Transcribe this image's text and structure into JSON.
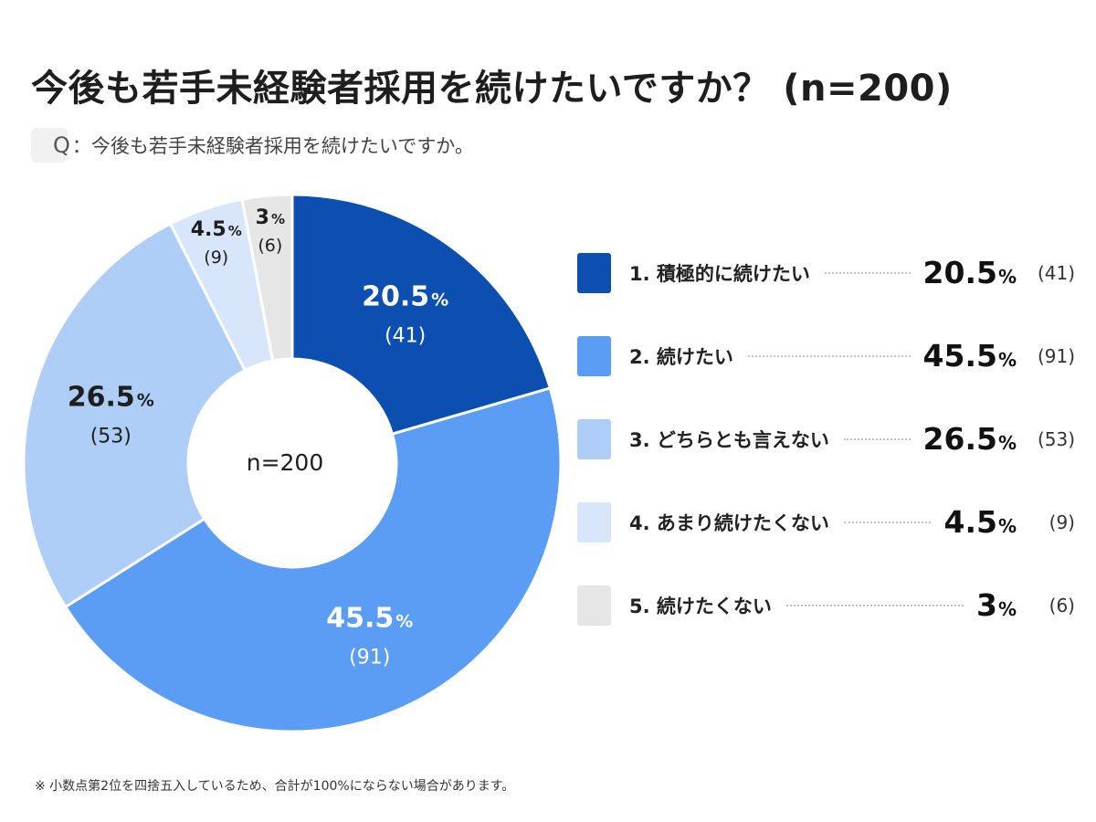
{
  "header": {
    "title": "今後も若手未経験者採用を続けたいですか？ (n=200)",
    "question_mark": "Q",
    "question_text": "：今後も若手未経験者採用を続けたいですか。"
  },
  "footnote": "※ 小数点第2位を四捨五入しているため、合計が100%にならない場合があります。",
  "chart_data": {
    "type": "pie",
    "donut": true,
    "center_label": "n=200",
    "categories": [
      "1. 積極的に続けたい",
      "2. 続けたい",
      "3. どちらとも言えない",
      "4. あまり続けたくない",
      "5. 続けたくない"
    ],
    "series": [
      {
        "values": [
          20.5,
          45.5,
          26.5,
          4.5,
          3
        ],
        "counts": [
          41,
          91,
          53,
          9,
          6
        ]
      }
    ],
    "percent_suffix": "%",
    "colors": [
      "#0c4fb0",
      "#5b9cf4",
      "#aecdf7",
      "#d7e6fb",
      "#e6e6e6"
    ],
    "label_colors": [
      "#ffffff",
      "#ffffff",
      "#1e1e1e",
      "#1e1e1e",
      "#1e1e1e"
    ],
    "legend_position": "right"
  }
}
